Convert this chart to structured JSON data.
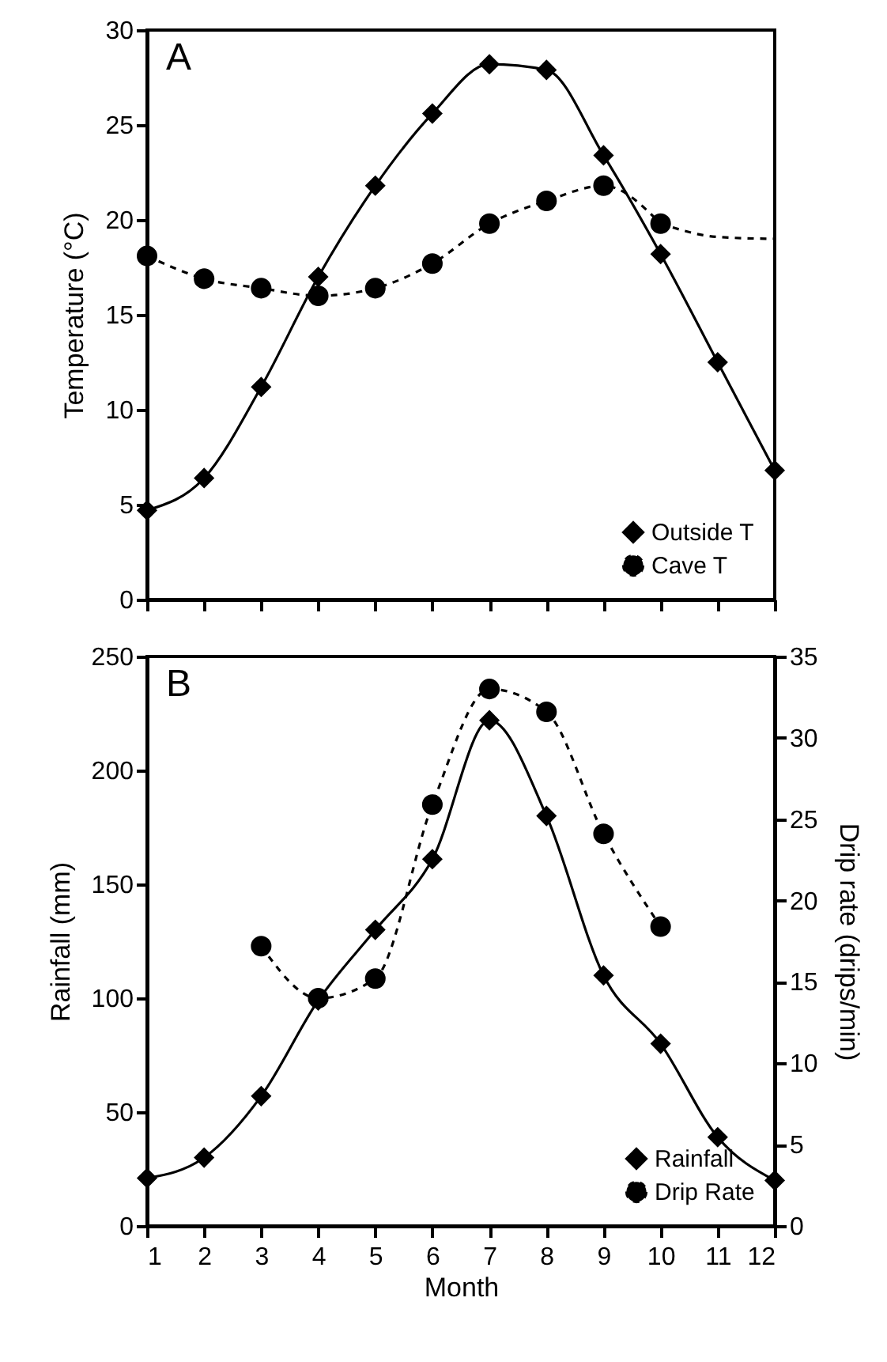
{
  "chart_data": [
    {
      "type": "line",
      "ylabel": "Temperature (°C)",
      "annotations": [
        "A"
      ],
      "x": [
        1,
        2,
        3,
        4,
        5,
        6,
        7,
        8,
        9,
        10,
        11,
        12
      ],
      "xlim": [
        1,
        12
      ],
      "xticks": [
        1,
        2,
        3,
        4,
        5,
        6,
        7,
        8,
        9,
        10,
        11,
        12
      ],
      "ylim": [
        0,
        30
      ],
      "yticks": [
        0,
        5,
        10,
        15,
        20,
        25,
        30
      ],
      "tick_labels": "y",
      "legend": "bottom right",
      "series": [
        {
          "name": "Outside T",
          "color": "#000000",
          "marker": "diamond",
          "line_style": "solid",
          "values": [
            4.7,
            6.4,
            11.2,
            17.0,
            21.8,
            25.6,
            28.2,
            27.9,
            23.4,
            18.2,
            12.5,
            6.8
          ]
        },
        {
          "name": "Cave T",
          "color": "#000000",
          "marker": "circle",
          "line_style": "dashed",
          "values": [
            18.1,
            16.9,
            16.4,
            16.0,
            16.4,
            17.7,
            19.8,
            21.0,
            21.8,
            19.8,
            null,
            null
          ]
        },
        {
          "color": "#000000",
          "marker": "none",
          "line_style": "dashed",
          "x": [
            10,
            11,
            12
          ],
          "values": [
            19.8,
            19.1,
            19.0
          ]
        }
      ]
    },
    {
      "type": "line",
      "xlabel": "Month",
      "ylabel": "Rainfall (mm)",
      "y2label": "Drip rate (drips/min)",
      "annotations": [
        "B"
      ],
      "x": [
        1,
        2,
        3,
        4,
        5,
        6,
        7,
        8,
        9,
        10,
        11,
        12
      ],
      "xlim": [
        1,
        12
      ],
      "xticks": [
        1,
        2,
        3,
        4,
        5,
        6,
        7,
        8,
        9,
        10,
        11,
        12
      ],
      "ylim": [
        0,
        250
      ],
      "yticks": [
        0,
        50,
        100,
        150,
        200,
        250
      ],
      "y2lim": [
        0,
        35
      ],
      "y2ticks": [
        0,
        5,
        10,
        15,
        20,
        25,
        30,
        35
      ],
      "legend": "bottom right",
      "series": [
        {
          "name": "Rainfall",
          "color": "#000000",
          "marker": "diamond",
          "line_style": "solid",
          "values": [
            21,
            30,
            57,
            99,
            130,
            161,
            222,
            180,
            110,
            80,
            39,
            20
          ]
        },
        {
          "name": "Drip Rate",
          "color": "#000000",
          "marker": "circle",
          "line_style": "dashed",
          "axis": "y2",
          "x": [
            3,
            4,
            5,
            6,
            7,
            8,
            9,
            10
          ],
          "values": [
            17.2,
            14.0,
            15.2,
            25.9,
            33.0,
            31.6,
            24.1,
            18.4
          ]
        }
      ]
    }
  ]
}
